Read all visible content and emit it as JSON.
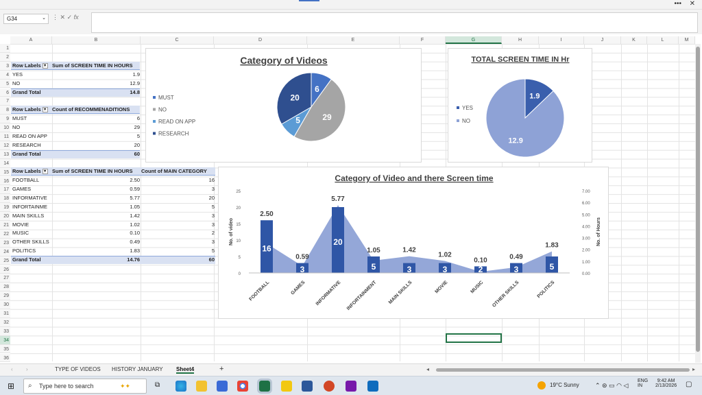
{
  "window": {
    "more_icon": "ellipsis-icon",
    "close_label": "✕"
  },
  "formula_bar": {
    "name_box": "G34",
    "fx_label": "fx",
    "formula": ""
  },
  "columns": [
    "A",
    "B",
    "C",
    "D",
    "E",
    "F",
    "G",
    "H",
    "I",
    "J",
    "K",
    "L",
    "M"
  ],
  "rows": [
    "1",
    "2",
    "3",
    "4",
    "5",
    "6",
    "7",
    "8",
    "9",
    "10",
    "11",
    "12",
    "13",
    "14",
    "15",
    "16",
    "17",
    "18",
    "19",
    "20",
    "21",
    "22",
    "23",
    "24",
    "25",
    "26",
    "27",
    "28",
    "29",
    "30",
    "31",
    "32",
    "33",
    "34",
    "35",
    "36"
  ],
  "pivot1": {
    "header": [
      "Row Labels",
      "Sum of SCREEN TIME IN HOURS"
    ],
    "rows": [
      [
        "YES",
        "1.9"
      ],
      [
        "NO",
        "12.9"
      ]
    ],
    "total": [
      "Grand Total",
      "14.8"
    ]
  },
  "pivot2": {
    "header": [
      "Row Labels",
      "Count of RECOMMENADITIONS"
    ],
    "rows": [
      [
        "MUST",
        "6"
      ],
      [
        "NO",
        "29"
      ],
      [
        "READ ON APP",
        "5"
      ],
      [
        "RESEARCH",
        "20"
      ]
    ],
    "total": [
      "Grand Total",
      "60"
    ]
  },
  "pivot3": {
    "header": [
      "Row Labels",
      "Sum of SCREEN TIME IN HOURS",
      "Count of MAIN CATEGORY"
    ],
    "rows": [
      [
        "FOOTBALL",
        "2.50",
        "16"
      ],
      [
        "GAMES",
        "0.59",
        "3"
      ],
      [
        "INFORMATIVE",
        "5.77",
        "20"
      ],
      [
        "INFORTAINME",
        "1.05",
        "5"
      ],
      [
        "MAIN SKILLS",
        "1.42",
        "3"
      ],
      [
        "MOVIE",
        "1.02",
        "3"
      ],
      [
        "MUSIC",
        "0.10",
        "2"
      ],
      [
        "OTHER SKILLS",
        "0.49",
        "3"
      ],
      [
        "POLITICS",
        "1.83",
        "5"
      ]
    ],
    "total": [
      "Grand Total",
      "14.76",
      "60"
    ]
  },
  "chart_data": [
    {
      "type": "pie",
      "title": "Category of Videos",
      "categories": [
        "MUST",
        "NO",
        "READ ON APP",
        "RESEARCH"
      ],
      "values": [
        6,
        29,
        5,
        20
      ],
      "colors": [
        "#4472c4",
        "#a5a5a5",
        "#5b9bd5",
        "#2f4f8f"
      ],
      "legend": "left"
    },
    {
      "type": "pie",
      "title": "TOTAL SCREEN TIME IN Hr",
      "categories": [
        "YES",
        "NO"
      ],
      "values": [
        1.9,
        12.9
      ],
      "colors": [
        "#3a5fad",
        "#8ea2d6"
      ],
      "legend": "left"
    },
    {
      "type": "bar",
      "title": "Category of Video and there Screen time",
      "categories": [
        "FOOTBALL",
        "GAMES",
        "INFORMATIVE",
        "INFORTAINMENT",
        "MAIN SKILLS",
        "MOVIE",
        "MUSIC",
        "OTHER SKILLS",
        "POLITICS"
      ],
      "series": [
        {
          "name": "Count of MAIN CATEGORY",
          "values": [
            16,
            3,
            20,
            5,
            3,
            3,
            2,
            3,
            5
          ],
          "axis": "left",
          "kind": "bar",
          "color": "#2f56a6"
        },
        {
          "name": "Sum of SCREEN TIME IN HOURS",
          "values": [
            2.5,
            0.59,
            5.77,
            1.05,
            1.42,
            1.02,
            0.1,
            0.49,
            1.83
          ],
          "axis": "right",
          "kind": "area",
          "color": "#8ea2d6"
        }
      ],
      "series_labels": [
        "16",
        "3",
        "20",
        "5",
        "3",
        "3",
        "2",
        "3",
        "5"
      ],
      "area_labels": [
        "2.50",
        "0.59",
        "5.77",
        "1.05",
        "1.42",
        "1.02",
        "0.10",
        "0.49",
        "1.83"
      ],
      "ylabel": "No. of video",
      "y2label": "No. of Hours",
      "ylim": [
        0,
        25
      ],
      "y2lim": [
        0,
        7
      ],
      "yticks": [
        "0",
        "5",
        "10",
        "15",
        "20",
        "25"
      ],
      "y2ticks": [
        "0.00",
        "1.00",
        "2.00",
        "3.00",
        "4.00",
        "5.00",
        "6.00",
        "7.00"
      ]
    }
  ],
  "sheet_tabs": {
    "tabs": [
      "TYPE OF VIDEOS",
      "HISTORY JANUARY",
      "Sheet4"
    ],
    "active": "Sheet4",
    "add": "+"
  },
  "taskbar": {
    "search_placeholder": "Type here to search",
    "weather": "19°C  Sunny",
    "lang1": "ENG",
    "lang2": "IN",
    "time": "9:42 AM",
    "date": "2/13/2026"
  }
}
